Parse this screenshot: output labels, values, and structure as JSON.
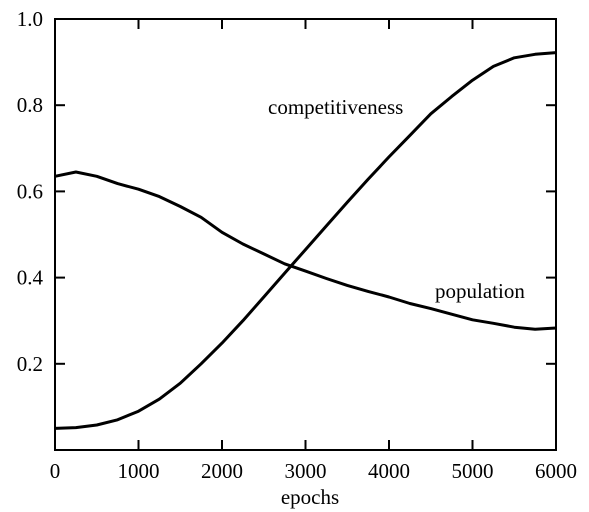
{
  "chart_data": {
    "type": "line",
    "title": "",
    "xlabel": "epochs",
    "ylabel": "",
    "xlim": [
      0,
      6000
    ],
    "ylim": [
      0,
      1.0
    ],
    "xticks": [
      0,
      1000,
      2000,
      3000,
      4000,
      5000,
      6000
    ],
    "xtick_labels": [
      "0",
      "1000",
      "2000",
      "3000",
      "4000",
      "5000",
      "6000"
    ],
    "yticks": [
      0.2,
      0.4,
      0.6,
      0.8,
      1.0
    ],
    "ytick_labels": [
      "0.2",
      "0.4",
      "0.6",
      "0.8",
      "1.0"
    ],
    "grid": false,
    "series": [
      {
        "name": "competitiveness",
        "color": "#000000",
        "x": [
          0,
          250,
          500,
          750,
          1000,
          1250,
          1500,
          1750,
          2000,
          2250,
          2500,
          2750,
          3000,
          3250,
          3500,
          3750,
          4000,
          4250,
          4500,
          4750,
          5000,
          5250,
          5500,
          5750,
          6000
        ],
        "values": [
          0.05,
          0.052,
          0.058,
          0.07,
          0.09,
          0.118,
          0.155,
          0.2,
          0.248,
          0.3,
          0.355,
          0.41,
          0.465,
          0.52,
          0.575,
          0.628,
          0.68,
          0.73,
          0.78,
          0.82,
          0.858,
          0.89,
          0.91,
          0.918,
          0.922
        ]
      },
      {
        "name": "population",
        "color": "#000000",
        "x": [
          0,
          250,
          500,
          750,
          1000,
          1250,
          1500,
          1750,
          2000,
          2250,
          2500,
          2750,
          3000,
          3250,
          3500,
          3750,
          4000,
          4250,
          4500,
          4750,
          5000,
          5250,
          5500,
          5750,
          6000
        ],
        "values": [
          0.635,
          0.645,
          0.635,
          0.618,
          0.605,
          0.588,
          0.565,
          0.54,
          0.505,
          0.478,
          0.455,
          0.432,
          0.415,
          0.398,
          0.382,
          0.368,
          0.355,
          0.34,
          0.328,
          0.315,
          0.302,
          0.294,
          0.285,
          0.28,
          0.283
        ]
      }
    ],
    "annotations": [
      {
        "text": "competitiveness",
        "series": "competitiveness"
      },
      {
        "text": "population",
        "series": "population"
      }
    ]
  }
}
